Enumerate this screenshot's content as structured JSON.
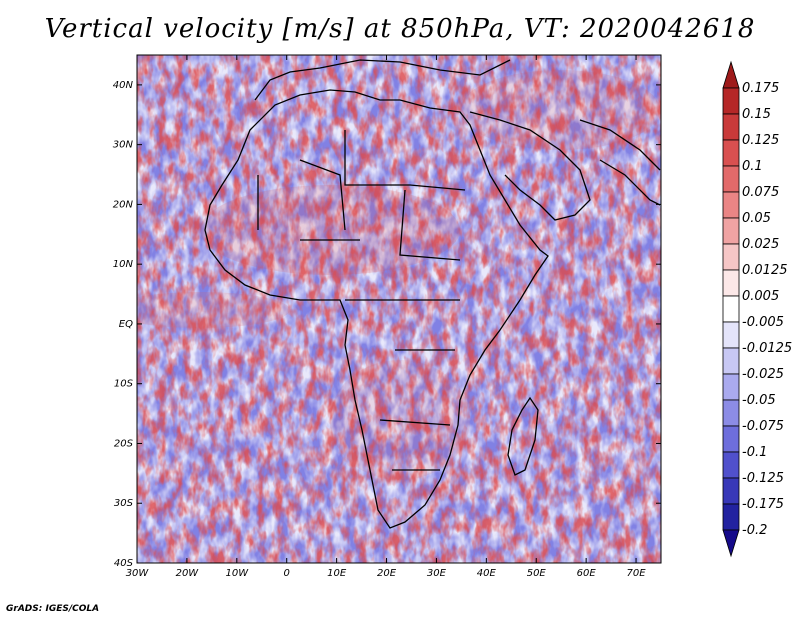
{
  "title": "Vertical velocity [m/s] at 850hPa, VT: 2020042618",
  "footer": "GrADS: IGES/COLA",
  "map": {
    "lat_labels": [
      "40N",
      "30N",
      "20N",
      "10N",
      "EQ",
      "10S",
      "20S",
      "30S",
      "40S"
    ],
    "lon_labels": [
      "30W",
      "20W",
      "10W",
      "0",
      "10E",
      "20E",
      "30E",
      "40E",
      "50E",
      "60E",
      "70E"
    ],
    "lat_range": [
      -40,
      45
    ],
    "lon_range": [
      -30,
      75
    ],
    "variable": "Vertical velocity",
    "units": "m/s",
    "level": "850hPa",
    "valid_time": "2020042618"
  },
  "colorbar": {
    "labels": [
      "0.175",
      "0.15",
      "0.125",
      "0.1",
      "0.075",
      "0.05",
      "0.025",
      "0.0125",
      "0.005",
      "-0.005",
      "-0.0125",
      "-0.025",
      "-0.05",
      "-0.075",
      "-0.1",
      "-0.125",
      "-0.175",
      "-0.2"
    ],
    "colors": [
      "#9e1a1a",
      "#b52727",
      "#c93a3a",
      "#d95050",
      "#e26a6a",
      "#ea8585",
      "#f0a3a3",
      "#f6c6c6",
      "#fce8e8",
      "#ffffff",
      "#e4e4fa",
      "#c8c8f4",
      "#aaaaee",
      "#8c8ce6",
      "#6e6edc",
      "#5050cc",
      "#3838b8",
      "#2222a0",
      "#150a8a"
    ]
  }
}
